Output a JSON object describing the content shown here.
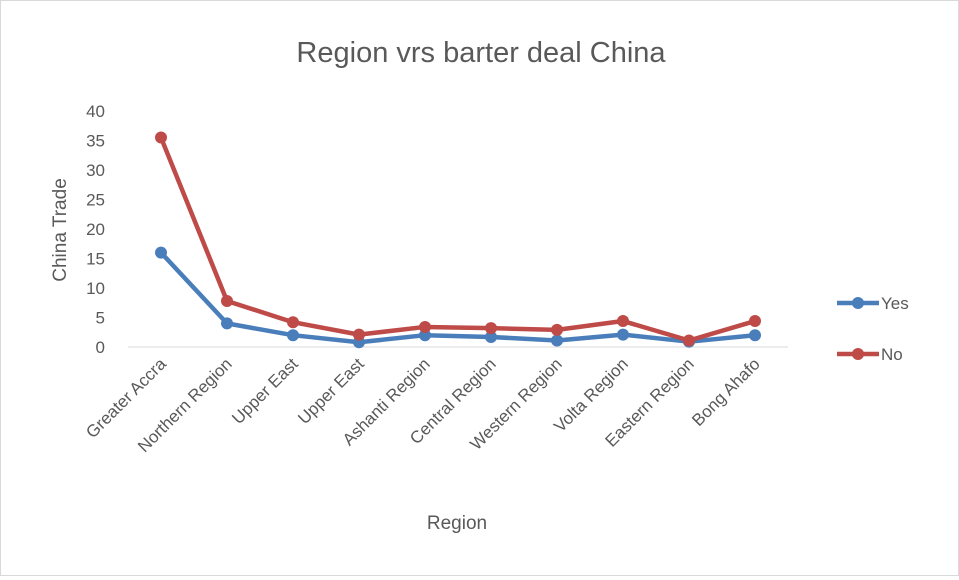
{
  "chart_data": {
    "type": "line",
    "title": "Region vrs barter deal China",
    "xlabel": "Region",
    "ylabel": "China Trade",
    "ylim": [
      0,
      40
    ],
    "yticks": [
      0,
      5,
      10,
      15,
      20,
      25,
      30,
      35,
      40
    ],
    "categories": [
      "Greater Accra",
      "Northern Region",
      "Upper East",
      "Upper East",
      "Ashanti Region",
      "Central Region",
      "Western Region",
      "Volta Region",
      "Eastern Region",
      "Bong Ahafo"
    ],
    "series": [
      {
        "name": "Yes",
        "color": "#4a7ebb",
        "values": [
          16,
          4,
          2,
          0.8,
          2,
          1.7,
          1.1,
          2.1,
          0.9,
          2
        ]
      },
      {
        "name": "No",
        "color": "#be4b48",
        "values": [
          35.5,
          7.8,
          4.2,
          2.1,
          3.4,
          3.2,
          2.9,
          4.4,
          1.1,
          4.4
        ]
      }
    ],
    "legend_position": "right",
    "grid": false
  }
}
